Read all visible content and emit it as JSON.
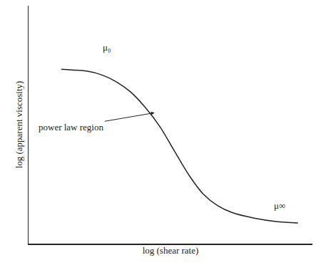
{
  "chart_data": {
    "type": "line",
    "x_label": "log (shear rate)",
    "y_label": "log (apparent viscosity)",
    "x": [
      1.15,
      1.54,
      2.05,
      2.56,
      3.08,
      3.59,
      4.1,
      4.62,
      5.13,
      5.64,
      6.15,
      6.67,
      7.18,
      7.95,
      8.72,
      9.49
    ],
    "values": [
      7.33,
      7.3,
      7.25,
      7.1,
      6.81,
      6.38,
      5.74,
      4.93,
      3.91,
      2.9,
      2.09,
      1.59,
      1.3,
      1.07,
      0.93,
      0.87
    ],
    "color": "#222222",
    "line_style": "solid",
    "xlim": [
      0,
      10
    ],
    "ylim": [
      0,
      10
    ],
    "tick_labels": false,
    "grid": false,
    "annotations": [
      {
        "text": "μ₀",
        "x": 2.77,
        "y": 8.26
      },
      {
        "text": "μ∞",
        "x": 8.85,
        "y": 1.59
      },
      {
        "text": "power law region",
        "x": 4.49,
        "y": 5.51,
        "ax": 1.5,
        "ay": 4.9
      }
    ]
  }
}
